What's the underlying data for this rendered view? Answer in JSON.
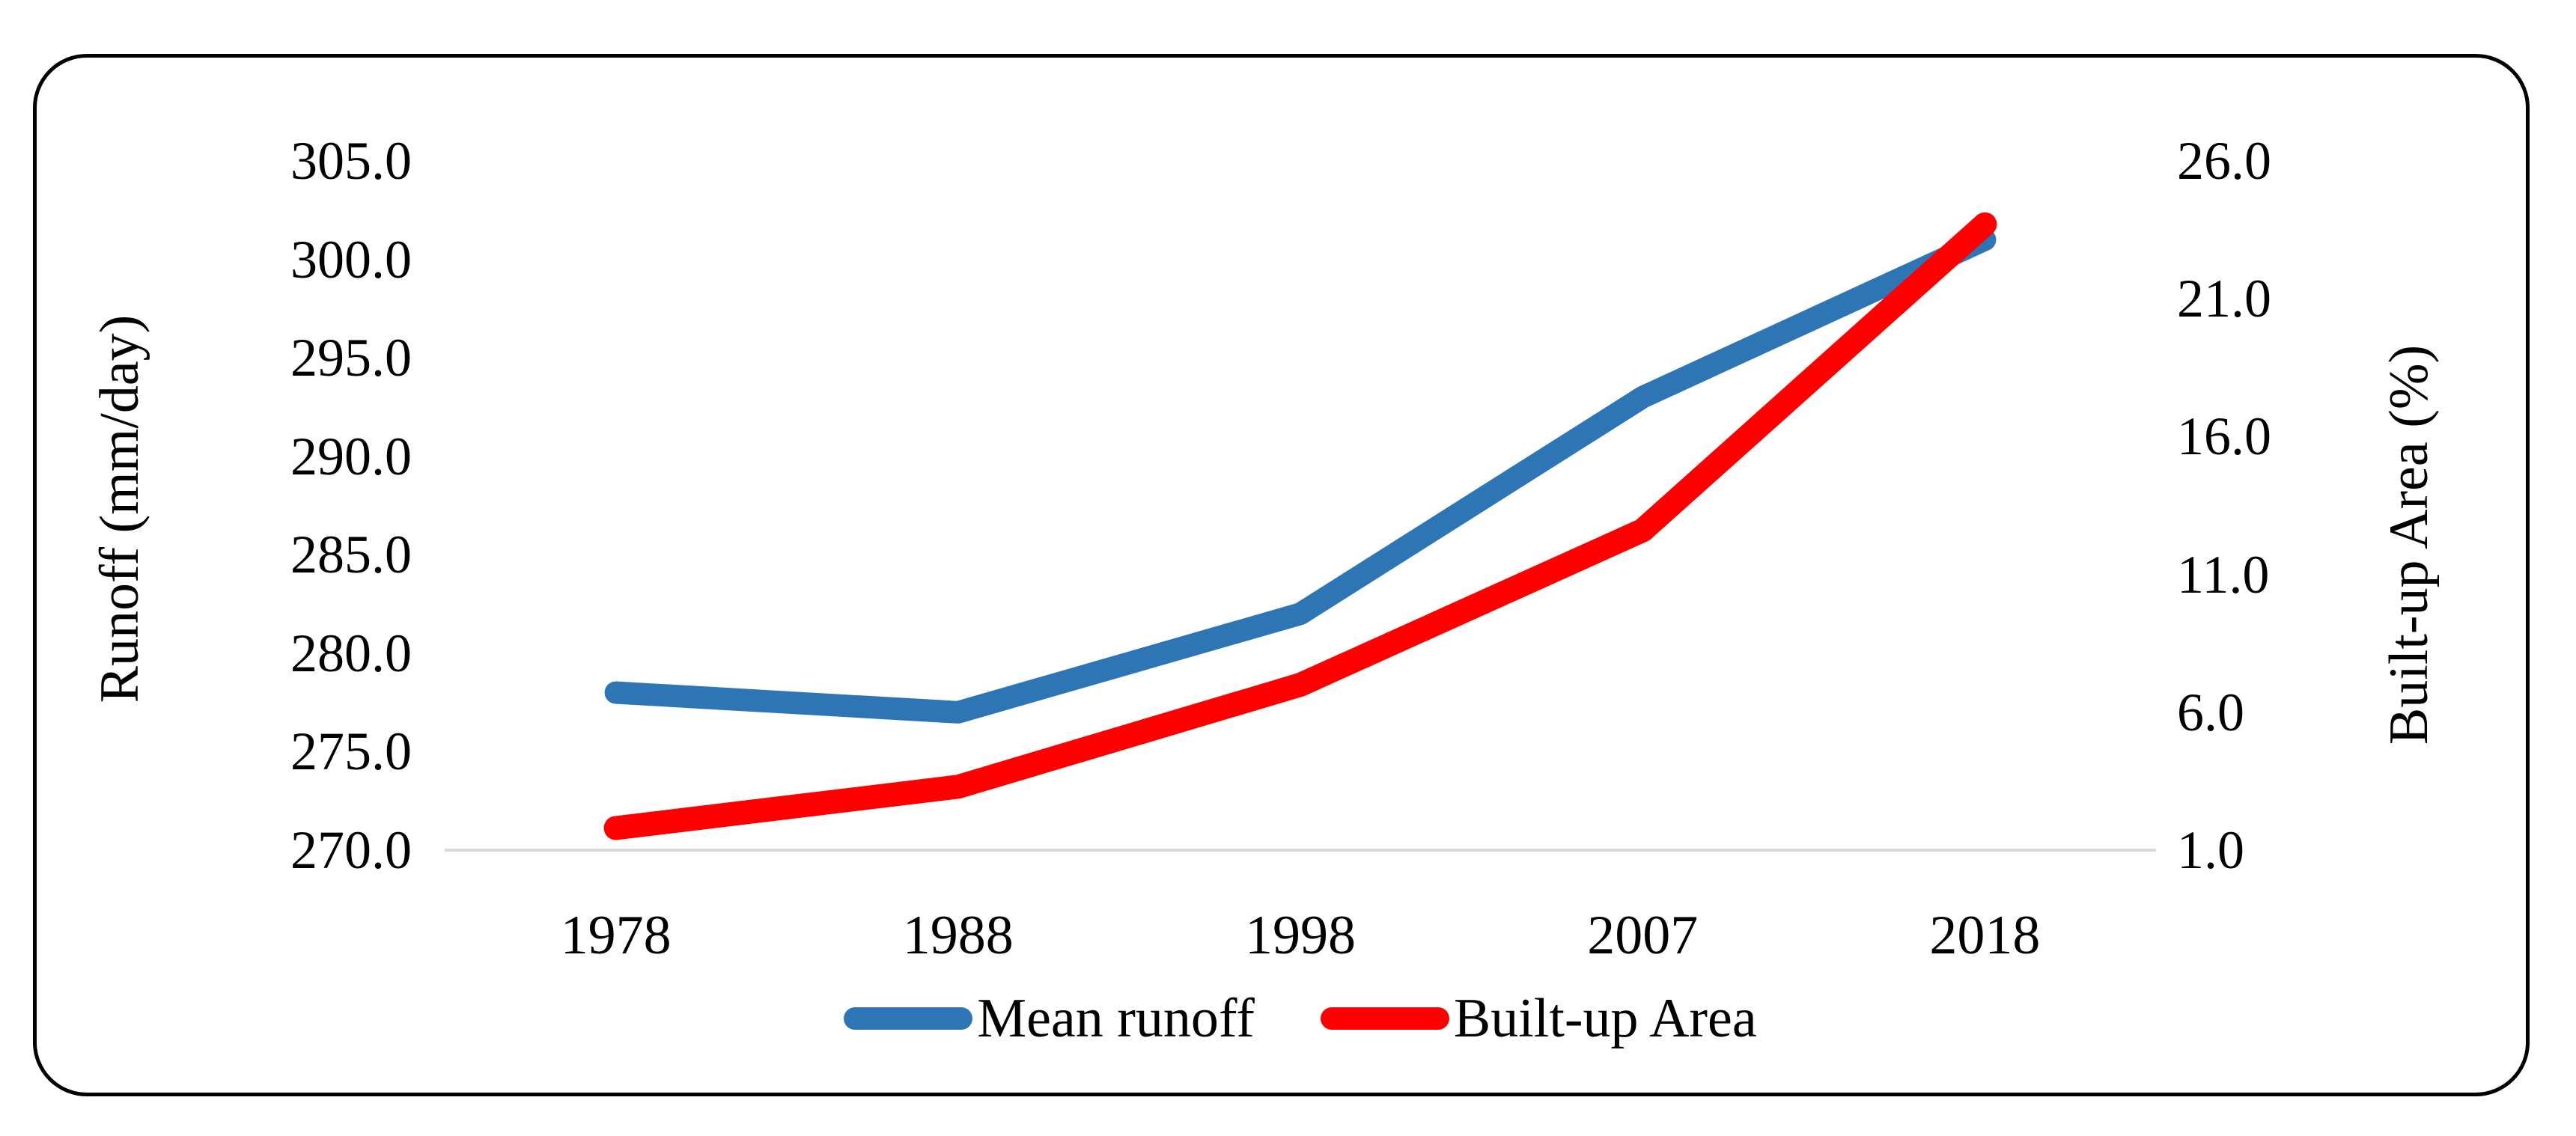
{
  "chart_data": {
    "type": "line",
    "title": "",
    "categories": [
      "1978",
      "1988",
      "1998",
      "2007",
      "2018"
    ],
    "series": [
      {
        "name": "Mean runoff",
        "axis": "left",
        "color": "#2E75B6",
        "values": [
          278.0,
          277.0,
          282.0,
          293.0,
          301.0
        ]
      },
      {
        "name": "Built-up Area",
        "axis": "right",
        "color": "#FF0000",
        "values": [
          1.8,
          3.3,
          7.0,
          12.6,
          23.7
        ]
      }
    ],
    "left_axis": {
      "label": "Runoff (mm/day)",
      "min": 270,
      "max": 305,
      "tick_step": 5,
      "ticks": [
        "305.0",
        "300.0",
        "295.0",
        "290.0",
        "285.0",
        "280.0",
        "275.0",
        "270.0"
      ]
    },
    "right_axis": {
      "label": "Built-up Area (%)",
      "min": 1,
      "max": 26,
      "tick_step": 5,
      "ticks": [
        "26.0",
        "21.0",
        "16.0",
        "11.0",
        "6.0",
        "1.0"
      ]
    },
    "x_axis": {
      "label": ""
    },
    "legend_position": "bottom",
    "grid": "baseline-only",
    "baseline_color": "#D9D9D9",
    "frame_color": "#000000",
    "background_color": "#FFFFFF"
  }
}
